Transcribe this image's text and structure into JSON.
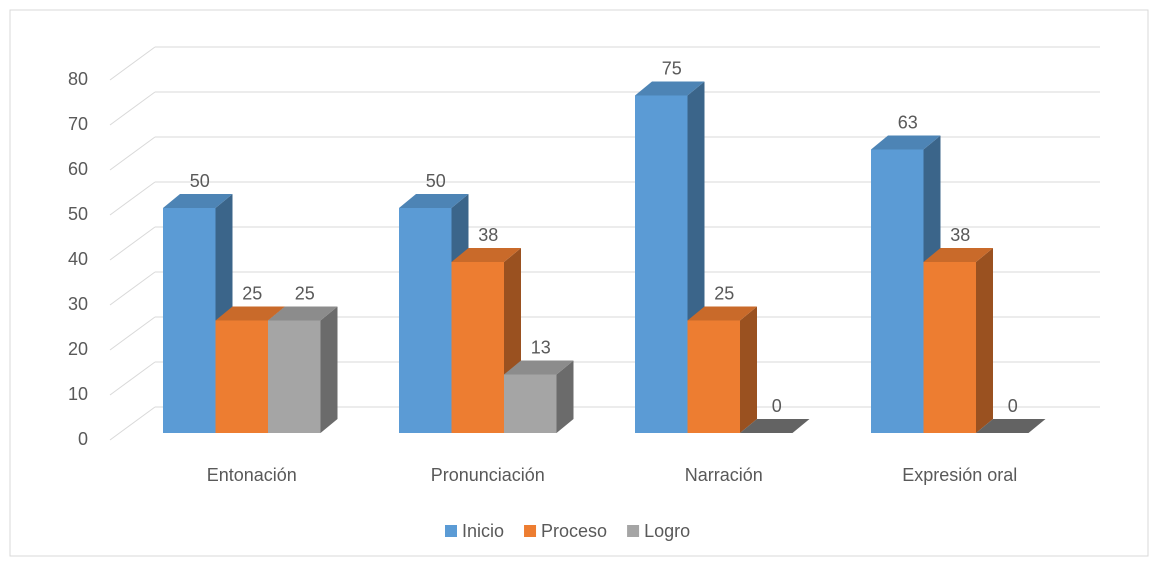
{
  "chart_data": {
    "type": "bar3d",
    "categories": [
      "Entonación",
      "Pronunciación",
      "Narración",
      "Expresión oral"
    ],
    "series": [
      {
        "name": "Inicio",
        "color": "#5b9bd5",
        "values": [
          50,
          50,
          75,
          63
        ]
      },
      {
        "name": "Proceso",
        "color": "#ed7d31",
        "values": [
          25,
          38,
          25,
          38
        ]
      },
      {
        "name": "Logro",
        "color": "#a5a5a5",
        "values": [
          25,
          13,
          0,
          0
        ]
      }
    ],
    "ylim": [
      0,
      80
    ],
    "yticks": [
      0,
      10,
      20,
      30,
      40,
      50,
      60,
      70,
      80
    ],
    "grid": true,
    "legend": "bottom"
  }
}
